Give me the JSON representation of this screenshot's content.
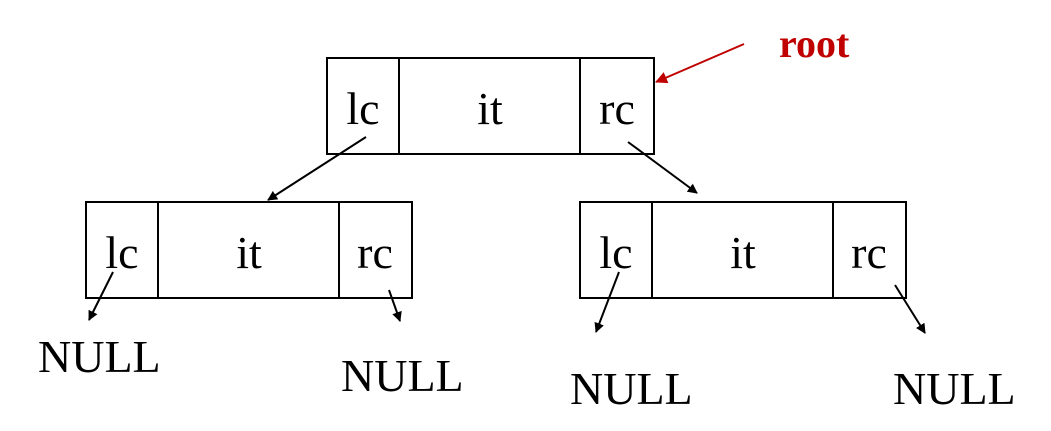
{
  "root_label": {
    "text": "root",
    "color": "#c00000"
  },
  "nodes": {
    "root": {
      "lc": "lc",
      "it": "it",
      "rc": "rc"
    },
    "left": {
      "lc": "lc",
      "it": "it",
      "rc": "rc"
    },
    "right": {
      "lc": "lc",
      "it": "it",
      "rc": "rc"
    }
  },
  "null_labels": {
    "left_lc": "NULL",
    "left_rc": "NULL",
    "right_lc": "NULL",
    "right_rc": "NULL"
  },
  "colors": {
    "line": "#000000",
    "root_arrow": "#c00000"
  }
}
